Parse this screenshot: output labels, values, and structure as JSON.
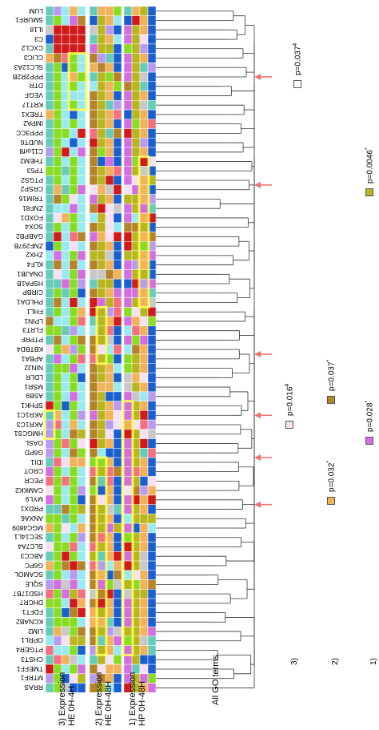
{
  "panels": {
    "expr_he_0h4h": "3) Expression\nHE 0H-4H",
    "expr_he_0h48h": "2) Expression\nHE 0H-48H",
    "expr_hp_0h48h": "1) Expression\nHP 0H-48H",
    "go_terms": "All GO terms"
  },
  "row_markers": [
    "3)",
    "2)",
    "1)"
  ],
  "pvalues": [
    {
      "text": "p=0.037",
      "mark": "4",
      "color": "#ffffff"
    },
    {
      "text": "p=0.016",
      "mark": "4",
      "color": "#f6e0f4"
    },
    {
      "text": "p=0.037",
      "mark": "*",
      "color": "#b5832a"
    },
    {
      "text": "p=0.028",
      "mark": "*",
      "color": "#d26ee0"
    },
    {
      "text": "p=0.032",
      "mark": "*",
      "color": "#f2b25a"
    },
    {
      "text": "p=0.0046",
      "mark": "*",
      "color": "#b8b61e"
    }
  ],
  "genes": [
    "LUM",
    "SMURF1",
    "IL18",
    "C3",
    "CXCL2",
    "CLIC3",
    "SLC12A3",
    "PPP2R2B",
    "DTR",
    "VEGF",
    "KRT17",
    "TREX1",
    "IMPA2",
    "PPP3CC",
    "NUDT6",
    "C11orf8",
    "THEM2",
    "TP53",
    "PTGS2",
    "CRSP2",
    "TRIM16",
    "ZNF81",
    "FOXD1",
    "SOX4",
    "GABPB2",
    "ZNF297B",
    "ZHX2",
    "KLF4",
    "DNAJB1",
    "HSPA1B",
    "CIRBP",
    "PHLDA1",
    "FHL1",
    "LPIN1",
    "FLRT3",
    "PTPRF",
    "KBTBD4",
    "APBA1",
    "NINJ2",
    "LDLR",
    "MSR1",
    "ASB9",
    "SPHK1",
    "AKR1C1",
    "AKR1C3",
    "HMGCS1",
    "OASL",
    "G6PD",
    "IDI1",
    "CROT",
    "PECR",
    "CAMKK2",
    "MYL9",
    "PRDX1",
    "ANXA6",
    "MGC4809",
    "SEC14L1",
    "SLC7A4",
    "ABCC3",
    "G6PC",
    "SCAMOL",
    "SQLE",
    "HSD17B7",
    "DHCR7",
    "FDFT1",
    "KCNAB2",
    "LIM2",
    "OPRL1",
    "PTGER4",
    "CHST3",
    "TMEFF1",
    "MTRF1",
    "RRAS"
  ],
  "palette": {
    "magenta": "#d26ee0",
    "pink": "#f6e0f4",
    "olive": "#b8b61e",
    "brown": "#b5832a",
    "orange": "#f2b25a",
    "blue": "#1a5fd0",
    "lime": "#88dd22",
    "teal": "#66ccb8",
    "cyan": "#99eaf0",
    "red": "#d11a1a",
    "salmon": "#f47080",
    "lavender": "#b89af0",
    "grey": "#c8c8c8",
    "highlight": "#ffff55"
  },
  "significance_arrow_color": "#f07070"
}
